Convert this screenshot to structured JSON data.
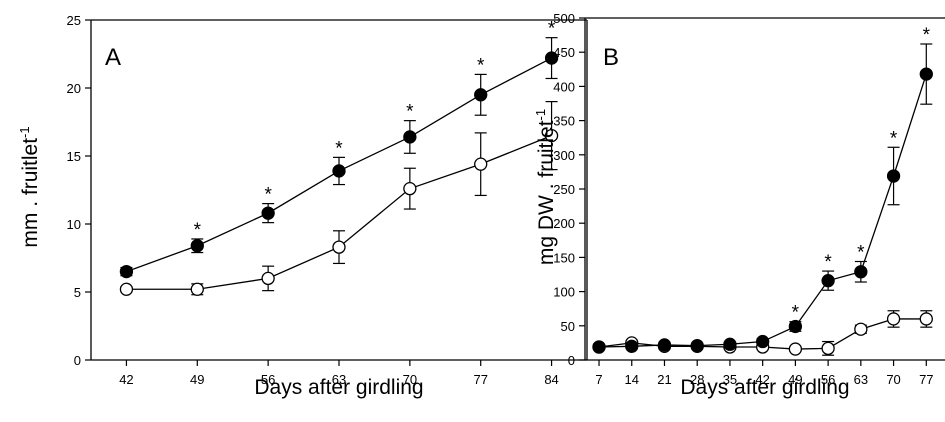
{
  "chart_data": [
    {
      "type": "line",
      "panel_label": "A",
      "xlabel": "Days after girdling",
      "ylabel": "mm . fruitlet",
      "ylabel_superscript": "-1",
      "x": [
        42,
        49,
        56,
        63,
        70,
        77,
        84
      ],
      "x_ticks": [
        "42",
        "49",
        "56",
        "63",
        "70",
        "77",
        "84"
      ],
      "ylim": [
        0,
        25
      ],
      "y_ticks": [
        "0",
        "5",
        "10",
        "15",
        "20",
        "25"
      ],
      "grid": false,
      "series": [
        {
          "marker": "filled-circle",
          "values": [
            6.5,
            8.4,
            10.8,
            13.9,
            16.4,
            19.5,
            22.2
          ],
          "errors": [
            0.3,
            0.5,
            0.7,
            1.0,
            1.2,
            1.5,
            1.5
          ],
          "significant": [
            false,
            true,
            true,
            true,
            true,
            true,
            true
          ]
        },
        {
          "marker": "open-circle",
          "values": [
            5.2,
            5.2,
            6.0,
            8.3,
            12.6,
            14.4,
            16.5
          ],
          "errors": [
            0.2,
            0.4,
            0.9,
            1.2,
            1.5,
            2.3,
            2.5
          ]
        }
      ],
      "significance_marker": "*"
    },
    {
      "type": "line",
      "panel_label": "B",
      "xlabel": "Days after girdling",
      "ylabel": "mg DW . fruitlet",
      "ylabel_superscript": "-1",
      "x": [
        7,
        14,
        21,
        28,
        35,
        42,
        49,
        56,
        63,
        70,
        77
      ],
      "x_ticks": [
        "7",
        "14",
        "21",
        "28",
        "35",
        "42",
        "49",
        "56",
        "63",
        "70",
        "77"
      ],
      "ylim": [
        0,
        500
      ],
      "y_ticks": [
        "0",
        "50",
        "100",
        "150",
        "200",
        "250",
        "300",
        "350",
        "400",
        "450",
        "500"
      ],
      "grid": false,
      "series": [
        {
          "marker": "filled-circle",
          "values": [
            19,
            20,
            22,
            21,
            23,
            27,
            49,
            116,
            129,
            269,
            418
          ],
          "errors": [
            3,
            3,
            3,
            3,
            3,
            4,
            7,
            14,
            15,
            42,
            44
          ],
          "significant": [
            false,
            false,
            false,
            false,
            false,
            false,
            true,
            true,
            true,
            true,
            true
          ]
        },
        {
          "marker": "open-circle",
          "values": [
            19,
            25,
            20,
            20,
            19,
            19,
            16,
            17,
            45,
            60,
            60
          ],
          "errors": [
            2,
            3,
            3,
            3,
            3,
            3,
            3,
            10,
            6,
            12,
            12
          ]
        }
      ],
      "significance_marker": "*"
    }
  ]
}
